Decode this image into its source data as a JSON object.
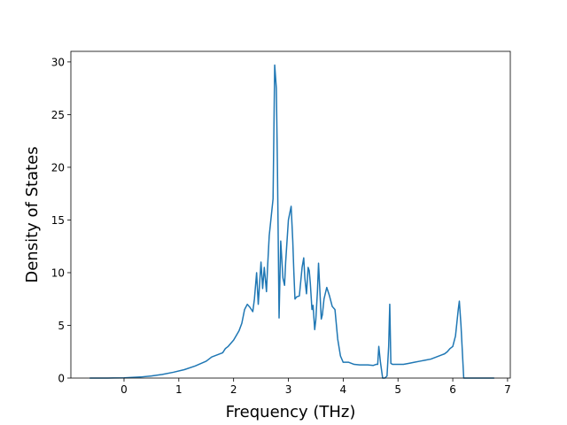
{
  "chart_data": {
    "type": "line",
    "title": "",
    "xlabel": "Frequency (THz)",
    "ylabel": "Density of States",
    "xlim": [
      -0.97,
      7.05
    ],
    "ylim": [
      0,
      31
    ],
    "xticks": [
      0,
      1,
      2,
      3,
      4,
      5,
      6,
      7
    ],
    "xtick_labels": [
      "0",
      "1",
      "2",
      "3",
      "4",
      "5",
      "6",
      "7"
    ],
    "yticks": [
      0,
      5,
      10,
      15,
      20,
      25,
      30
    ],
    "ytick_labels": [
      "0",
      "5",
      "10",
      "15",
      "20",
      "25",
      "30"
    ],
    "grid": false,
    "legend": "none",
    "series": [
      {
        "color": "#1f77b4",
        "x": [
          -0.62,
          -0.3,
          0.0,
          0.3,
          0.5,
          0.7,
          0.9,
          1.1,
          1.3,
          1.5,
          1.6,
          1.7,
          1.8,
          1.85,
          1.9,
          2.0,
          2.1,
          2.15,
          2.2,
          2.25,
          2.3,
          2.35,
          2.38,
          2.42,
          2.45,
          2.5,
          2.53,
          2.56,
          2.6,
          2.62,
          2.65,
          2.7,
          2.72,
          2.75,
          2.78,
          2.8,
          2.83,
          2.86,
          2.9,
          2.93,
          2.95,
          3.0,
          3.05,
          3.08,
          3.1,
          3.12,
          3.15,
          3.2,
          3.25,
          3.28,
          3.3,
          3.33,
          3.36,
          3.38,
          3.4,
          3.43,
          3.45,
          3.48,
          3.5,
          3.53,
          3.55,
          3.6,
          3.62,
          3.65,
          3.7,
          3.75,
          3.8,
          3.85,
          3.9,
          3.95,
          4.0,
          4.1,
          4.2,
          4.3,
          4.45,
          4.55,
          4.6,
          4.63,
          4.65,
          4.68,
          4.72,
          4.76,
          4.8,
          4.83,
          4.85,
          4.87,
          4.9,
          5.0,
          5.1,
          5.2,
          5.3,
          5.4,
          5.5,
          5.6,
          5.7,
          5.8,
          5.85,
          5.9,
          5.95,
          6.0,
          6.05,
          6.08,
          6.1,
          6.12,
          6.15,
          6.2,
          6.4,
          6.75
        ],
        "y": [
          0,
          0,
          0.02,
          0.1,
          0.2,
          0.35,
          0.55,
          0.8,
          1.15,
          1.6,
          2.0,
          2.2,
          2.4,
          2.8,
          3.0,
          3.6,
          4.5,
          5.2,
          6.5,
          7.0,
          6.7,
          6.3,
          7.5,
          10.0,
          7.0,
          11.0,
          8.5,
          10.5,
          8.2,
          10.5,
          13.5,
          16.0,
          17.0,
          29.7,
          27.5,
          20.0,
          5.7,
          13.0,
          9.5,
          8.8,
          11.0,
          15.0,
          16.3,
          13.0,
          10.0,
          7.5,
          7.7,
          7.8,
          10.5,
          11.4,
          9.5,
          8.0,
          10.5,
          10.2,
          9.0,
          6.5,
          6.9,
          4.6,
          5.5,
          8.2,
          10.9,
          5.6,
          6.0,
          7.5,
          8.6,
          7.8,
          6.8,
          6.5,
          3.7,
          2.1,
          1.5,
          1.5,
          1.3,
          1.25,
          1.25,
          1.2,
          1.3,
          1.3,
          3.0,
          1.5,
          0.0,
          0.0,
          0.2,
          3.0,
          7.0,
          1.4,
          1.3,
          1.3,
          1.3,
          1.4,
          1.5,
          1.6,
          1.7,
          1.8,
          2.0,
          2.2,
          2.3,
          2.5,
          2.8,
          3.0,
          4.0,
          5.5,
          6.5,
          7.3,
          5.0,
          0.0,
          0.0,
          0.0
        ]
      }
    ]
  }
}
